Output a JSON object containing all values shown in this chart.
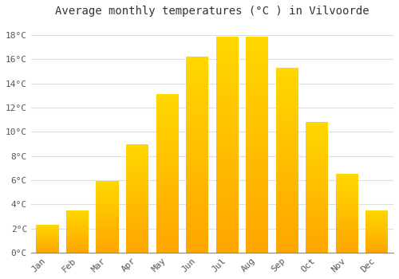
{
  "title": "Average monthly temperatures (°C ) in Vilvoorde",
  "months": [
    "Jan",
    "Feb",
    "Mar",
    "Apr",
    "May",
    "Jun",
    "Jul",
    "Aug",
    "Sep",
    "Oct",
    "Nov",
    "Dec"
  ],
  "values": [
    2.3,
    3.5,
    5.9,
    9.0,
    13.1,
    16.2,
    17.9,
    17.9,
    15.3,
    10.8,
    6.5,
    3.5
  ],
  "bar_color_bottom": "#FFA500",
  "bar_color_top": "#FFD700",
  "ylim": [
    0,
    19
  ],
  "yticks": [
    0,
    2,
    4,
    6,
    8,
    10,
    12,
    14,
    16,
    18
  ],
  "ytick_labels": [
    "0°C",
    "2°C",
    "4°C",
    "6°C",
    "8°C",
    "10°C",
    "12°C",
    "14°C",
    "16°C",
    "18°C"
  ],
  "background_color": "#FFFFFF",
  "grid_color": "#DDDDDD",
  "title_fontsize": 10,
  "tick_fontsize": 8,
  "bar_width": 0.75
}
